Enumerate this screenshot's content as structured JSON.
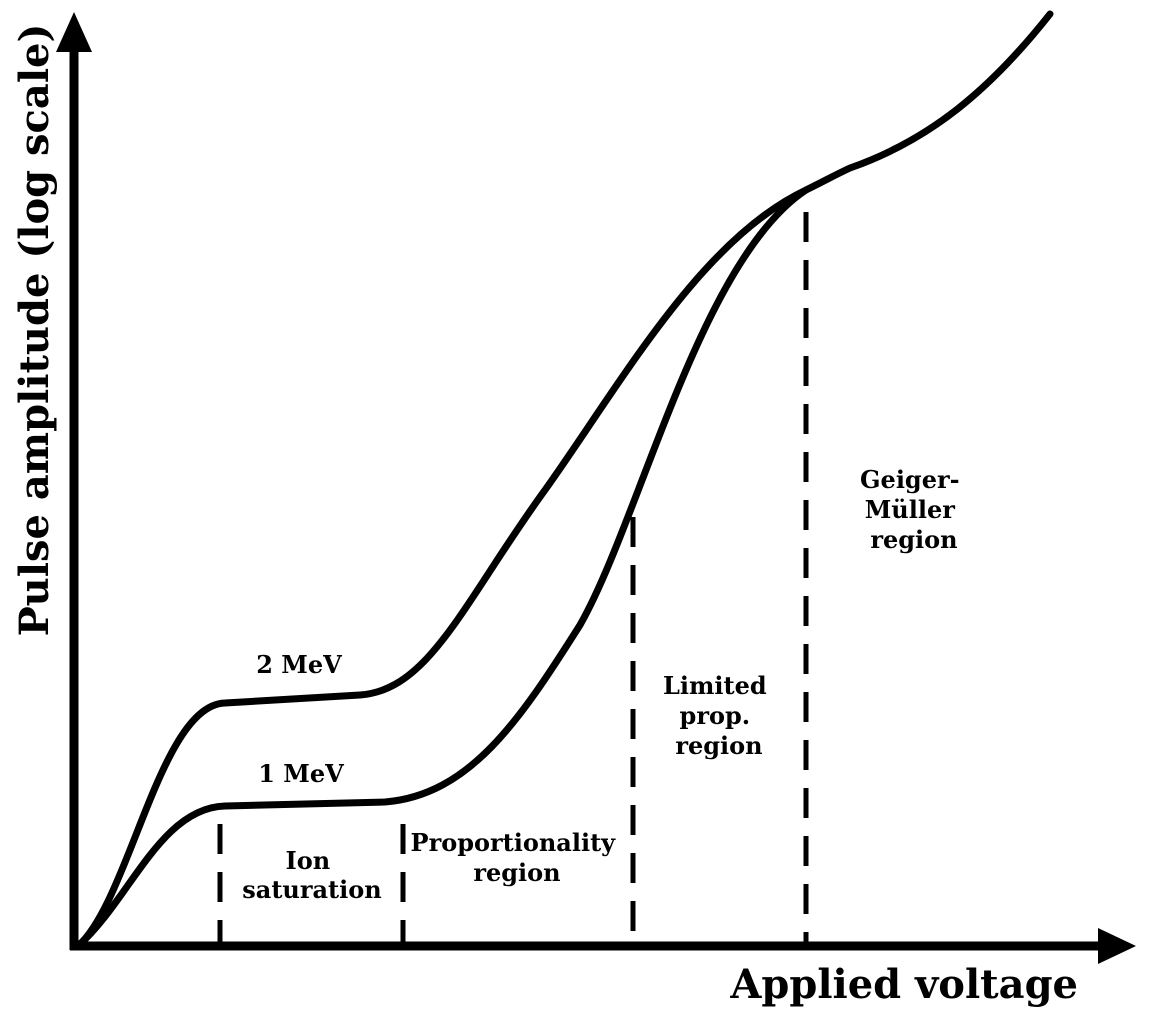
{
  "axes": {
    "x_label": "Applied voltage",
    "y_label": "Pulse amplitude (log scale)"
  },
  "curves": {
    "upper_label": "2 MeV",
    "lower_label": "1 MeV"
  },
  "regions": {
    "ion_saturation": [
      "Ion",
      "saturation"
    ],
    "proportionality": [
      "Proportionality",
      "region"
    ],
    "limited_prop": [
      "Limited",
      "prop.",
      "region"
    ],
    "geiger_muller": [
      "Geiger-",
      "Müller",
      "region"
    ]
  },
  "colors": {
    "ink": "#000000",
    "background": "#ffffff"
  }
}
